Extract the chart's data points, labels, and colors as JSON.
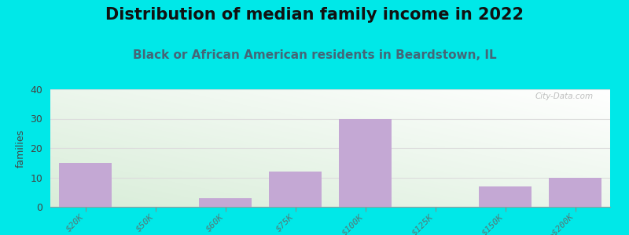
{
  "title": "Distribution of median family income in 2022",
  "subtitle": "Black or African American residents in Beardstown, IL",
  "categories": [
    "$20K",
    "$50K",
    "$60K",
    "$75K",
    "$100K",
    "$125K",
    "$150K",
    ">$200K"
  ],
  "values": [
    15,
    0,
    3,
    12,
    30,
    0,
    7,
    10
  ],
  "bar_color": "#c4a8d4",
  "background_outer": "#00e8e8",
  "grad_color_topleft": "#d8edd8",
  "grad_color_bottomright": "#ffffff",
  "ylabel": "families",
  "ylim": [
    0,
    40
  ],
  "yticks": [
    0,
    10,
    20,
    30,
    40
  ],
  "title_fontsize": 15,
  "subtitle_fontsize": 11,
  "watermark": "City-Data.com",
  "tick_label_color": "#557777",
  "tick_label_fontsize": 8,
  "subtitle_color": "#446677",
  "title_color": "#111111",
  "ylabel_color": "#444444",
  "grid_color": "#dddddd"
}
